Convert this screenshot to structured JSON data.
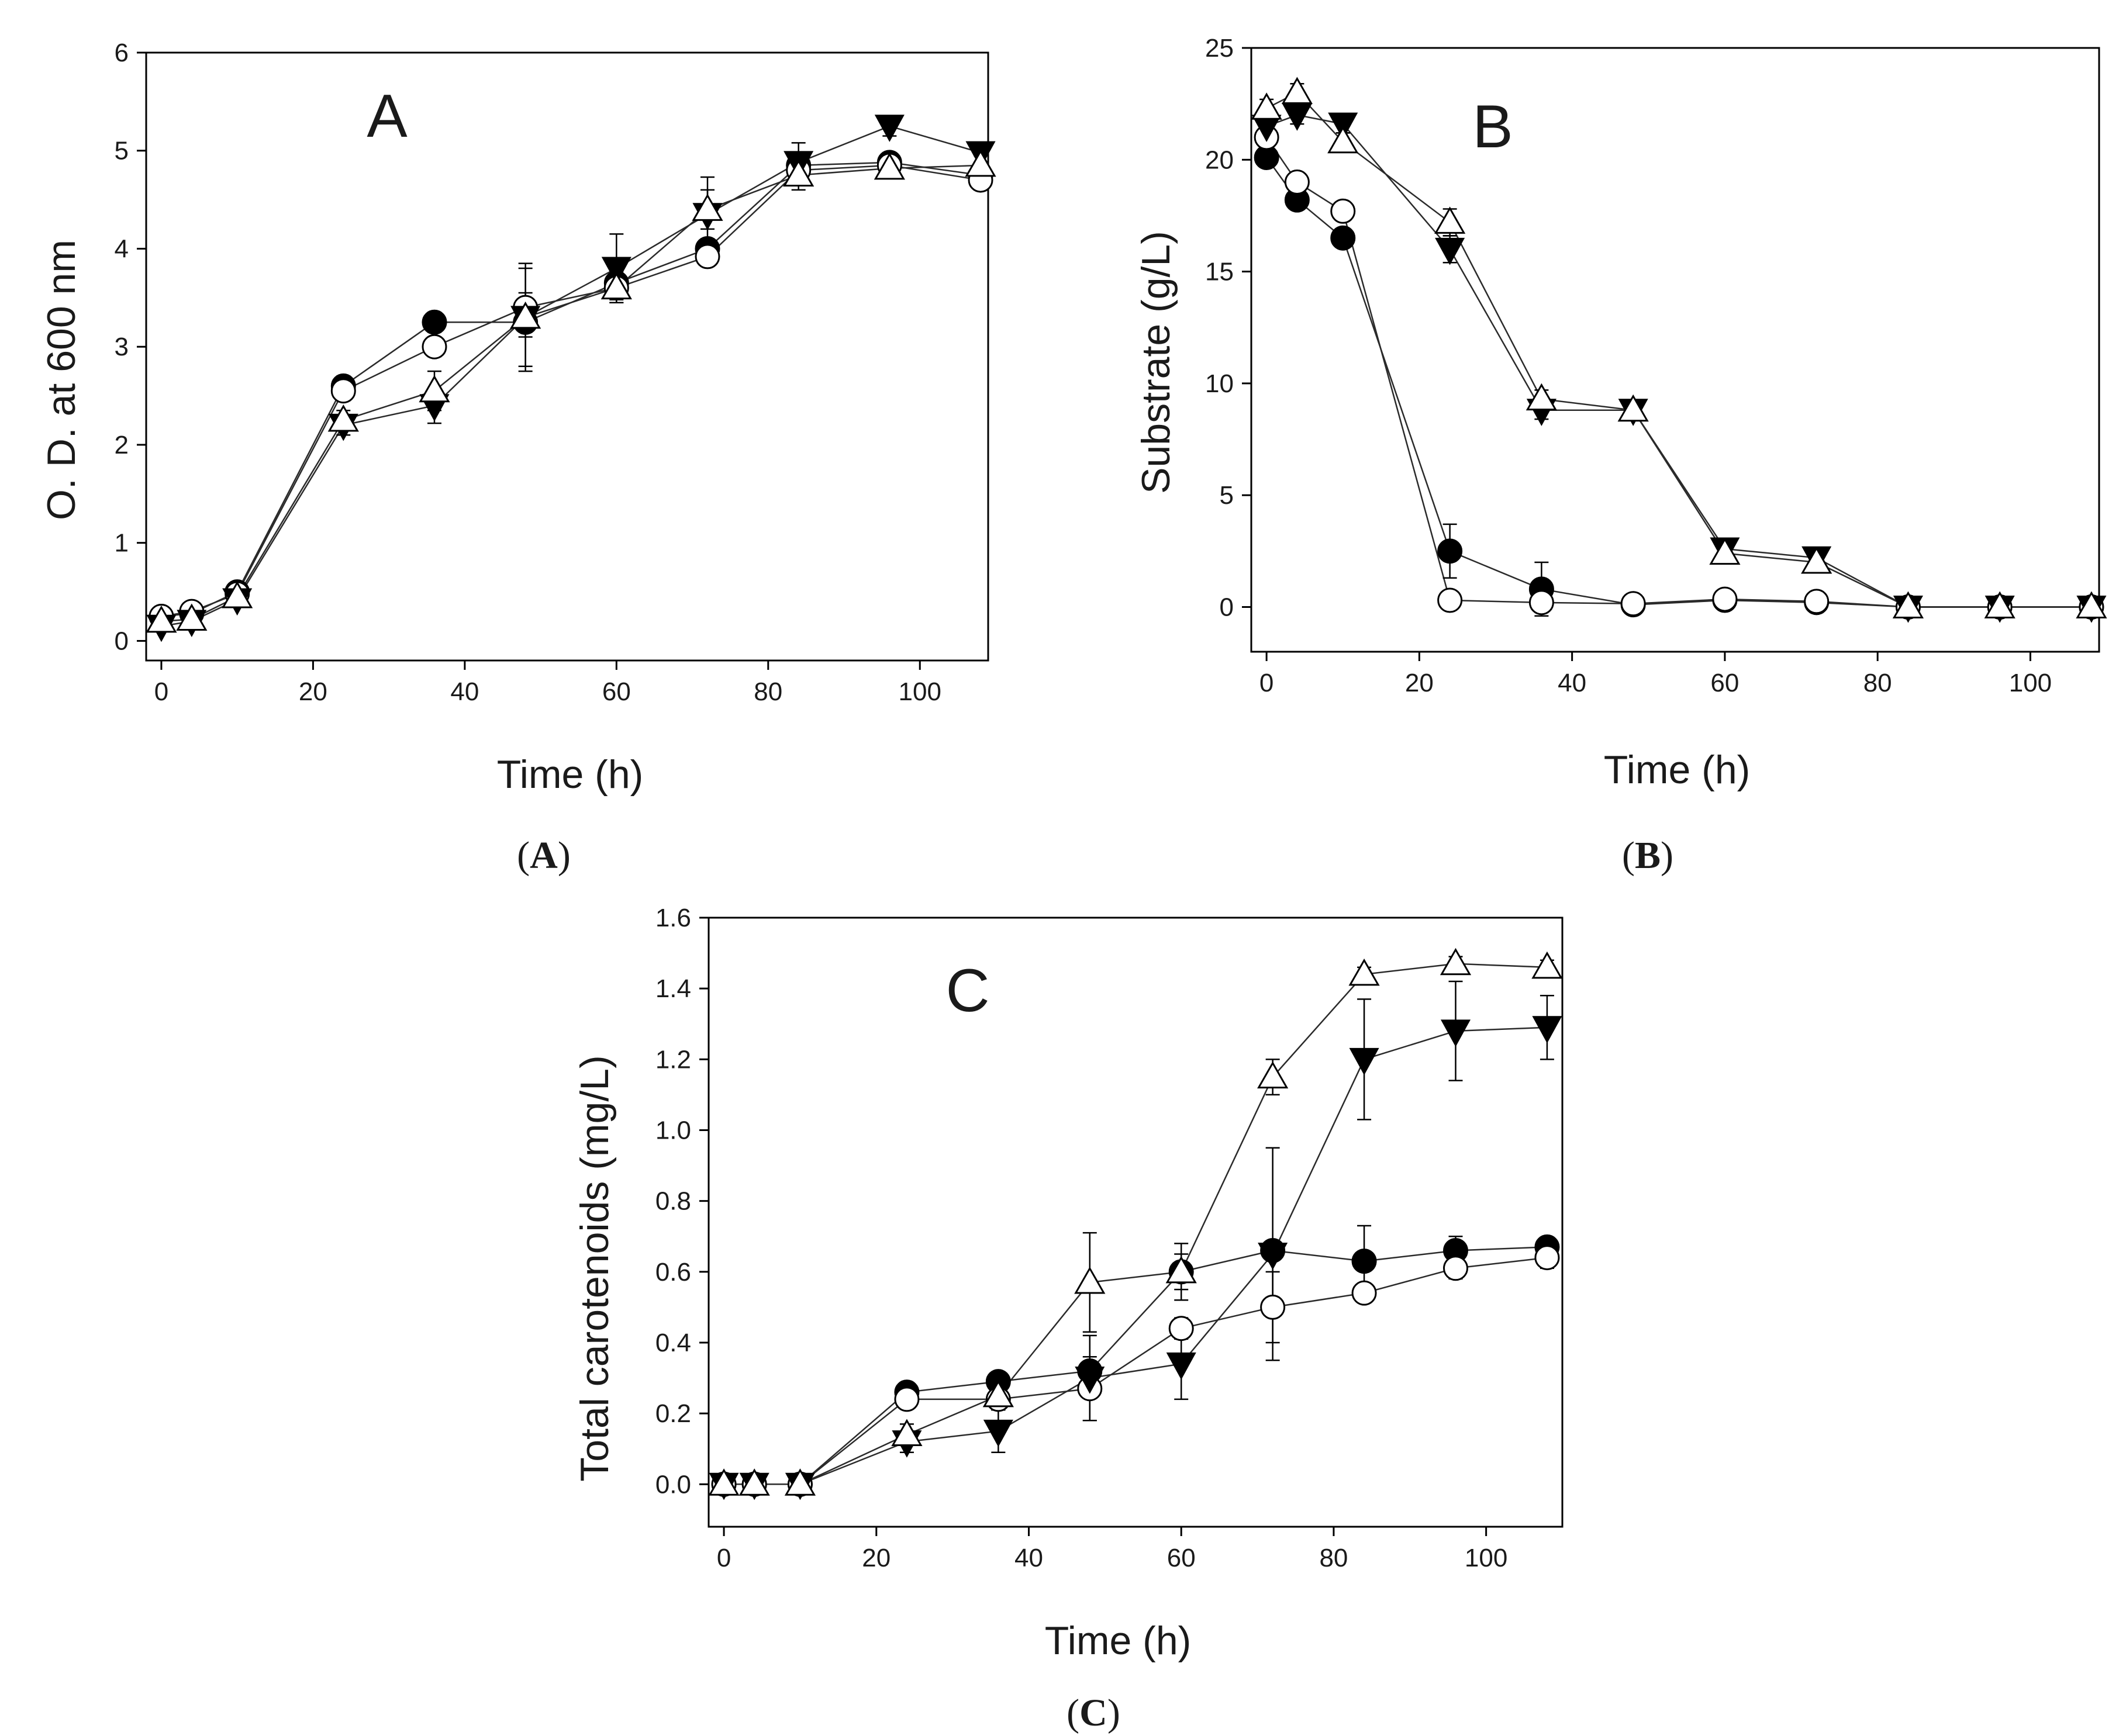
{
  "colors": {
    "line": "#2a2a2a",
    "axis": "#000000",
    "filled": "#000000",
    "open": "#ffffff"
  },
  "legend": [
    {
      "marker": "filled-circle"
    },
    {
      "marker": "open-circle"
    },
    {
      "marker": "filled-triangle-down"
    },
    {
      "marker": "open-triangle-up"
    }
  ],
  "chart_data": [
    {
      "type": "line",
      "panel_letter": "A",
      "caption_letter": "A",
      "title": "",
      "xlabel": "Time (h)",
      "ylabel": "O. D. at 600 nm",
      "xlim": [
        -2,
        109
      ],
      "ylim": [
        -0.2,
        6
      ],
      "xticks": [
        0,
        20,
        40,
        60,
        80,
        100
      ],
      "yticks": [
        0,
        1,
        2,
        3,
        4,
        5,
        6
      ],
      "x": [
        0,
        4,
        10,
        24,
        36,
        48,
        60,
        72,
        84,
        96,
        108
      ],
      "series": [
        {
          "marker": "filled-circle",
          "values": [
            0.25,
            0.28,
            0.5,
            2.6,
            3.25,
            3.25,
            3.65,
            4.0,
            4.85,
            4.88,
            4.75
          ],
          "errors": [
            0.05,
            0.05,
            0.05,
            0.1,
            0.1,
            0.15,
            0.12,
            0.1,
            0.1,
            0.1,
            0.1
          ]
        },
        {
          "marker": "open-circle",
          "values": [
            0.25,
            0.3,
            0.48,
            2.55,
            3.0,
            3.4,
            3.6,
            3.92,
            4.8,
            4.85,
            4.7
          ],
          "errors": [
            0.05,
            0.05,
            0.05,
            0.1,
            0.1,
            0.15,
            0.12,
            0.1,
            0.1,
            0.1,
            0.1
          ]
        },
        {
          "marker": "filled-triangle-down",
          "values": [
            0.15,
            0.2,
            0.42,
            2.2,
            2.4,
            3.3,
            3.8,
            4.35,
            4.88,
            5.25,
            4.98
          ],
          "errors": [
            0.05,
            0.05,
            0.05,
            0.1,
            0.18,
            0.55,
            0.35,
            0.38,
            0.2,
            0.1,
            0.1
          ]
        },
        {
          "marker": "open-triangle-up",
          "values": [
            0.2,
            0.22,
            0.45,
            2.25,
            2.55,
            3.3,
            3.6,
            4.4,
            4.75,
            4.82,
            4.85
          ],
          "errors": [
            0.05,
            0.05,
            0.05,
            0.1,
            0.2,
            0.5,
            0.15,
            0.2,
            0.15,
            0.1,
            0.1
          ]
        }
      ]
    },
    {
      "type": "line",
      "panel_letter": "B",
      "caption_letter": "B",
      "title": "",
      "xlabel": "Time (h)",
      "ylabel": "Substrate (g/L)",
      "xlim": [
        -2,
        109
      ],
      "ylim": [
        -2,
        25
      ],
      "xticks": [
        0,
        20,
        40,
        60,
        80,
        100
      ],
      "yticks": [
        0,
        5,
        10,
        15,
        20,
        25
      ],
      "x": [
        0,
        4,
        10,
        24,
        36,
        48,
        60,
        72,
        84,
        96,
        108
      ],
      "series": [
        {
          "marker": "filled-circle",
          "values": [
            20.1,
            18.2,
            16.5,
            2.5,
            0.8,
            0.1,
            0.3,
            0.2,
            0.0,
            0.0,
            0.0
          ],
          "errors": [
            0.3,
            0.3,
            0.3,
            1.2,
            1.2,
            0.1,
            0.1,
            0.1,
            0.05,
            0.05,
            0.05
          ]
        },
        {
          "marker": "open-circle",
          "values": [
            21.0,
            19.0,
            17.7,
            0.3,
            0.2,
            0.15,
            0.35,
            0.25,
            0.0,
            0.0,
            0.0
          ],
          "errors": [
            0.3,
            0.3,
            0.3,
            0.2,
            0.2,
            0.1,
            0.1,
            0.1,
            0.05,
            0.05,
            0.05
          ]
        },
        {
          "marker": "filled-triangle-down",
          "values": [
            21.5,
            22.0,
            21.6,
            16.0,
            8.8,
            8.8,
            2.6,
            2.2,
            0.0,
            0.0,
            0.0
          ],
          "errors": [
            0.4,
            0.4,
            0.4,
            0.6,
            0.4,
            0.4,
            0.3,
            0.3,
            0.05,
            0.05,
            0.05
          ]
        },
        {
          "marker": "open-triangle-up",
          "values": [
            22.3,
            23.0,
            20.8,
            17.2,
            9.3,
            8.8,
            2.4,
            2.0,
            0.0,
            0.0,
            0.0
          ],
          "errors": [
            0.4,
            0.4,
            0.4,
            0.6,
            0.4,
            0.4,
            0.3,
            0.3,
            0.05,
            0.05,
            0.05
          ]
        }
      ]
    },
    {
      "type": "line",
      "panel_letter": "C",
      "caption_letter": "C",
      "title": "",
      "xlabel": "Time (h)",
      "ylabel": "Total carotenoids (mg/L)",
      "xlim": [
        -2,
        110
      ],
      "ylim": [
        -0.12,
        1.6
      ],
      "xticks": [
        0,
        20,
        40,
        60,
        80,
        100
      ],
      "yticks": [
        0.0,
        0.2,
        0.4,
        0.6,
        0.8,
        1.0,
        1.2,
        1.4,
        1.6
      ],
      "ytick_labels": [
        "0.0",
        "0.2",
        "0.4",
        "0.6",
        "0.8",
        "1.0",
        "1.2",
        "1.4",
        "1.6"
      ],
      "x": [
        0,
        4,
        10,
        24,
        36,
        48,
        60,
        72,
        84,
        96,
        108
      ],
      "series": [
        {
          "marker": "filled-circle",
          "values": [
            0.0,
            0.0,
            0.0,
            0.26,
            0.29,
            0.32,
            0.6,
            0.66,
            0.63,
            0.66,
            0.67
          ],
          "errors": [
            0.01,
            0.01,
            0.01,
            0.02,
            0.02,
            0.02,
            0.08,
            0.02,
            0.1,
            0.04,
            0.02
          ]
        },
        {
          "marker": "open-circle",
          "values": [
            0.0,
            0.0,
            0.0,
            0.24,
            0.24,
            0.27,
            0.44,
            0.5,
            0.54,
            0.61,
            0.64
          ],
          "errors": [
            0.01,
            0.01,
            0.01,
            0.02,
            0.03,
            0.09,
            0.03,
            0.1,
            0.02,
            0.03,
            0.03
          ]
        },
        {
          "marker": "filled-triangle-down",
          "values": [
            0.0,
            0.0,
            0.0,
            0.12,
            0.15,
            0.3,
            0.34,
            0.65,
            1.2,
            1.28,
            1.29
          ],
          "errors": [
            0.01,
            0.01,
            0.01,
            0.03,
            0.06,
            0.12,
            0.1,
            0.3,
            0.17,
            0.14,
            0.09
          ]
        },
        {
          "marker": "open-triangle-up",
          "values": [
            0.0,
            0.0,
            0.0,
            0.14,
            0.25,
            0.57,
            0.6,
            1.15,
            1.44,
            1.47,
            1.46
          ],
          "errors": [
            0.01,
            0.01,
            0.01,
            0.03,
            0.04,
            0.14,
            0.05,
            0.05,
            0.02,
            0.02,
            0.02
          ]
        }
      ]
    }
  ]
}
